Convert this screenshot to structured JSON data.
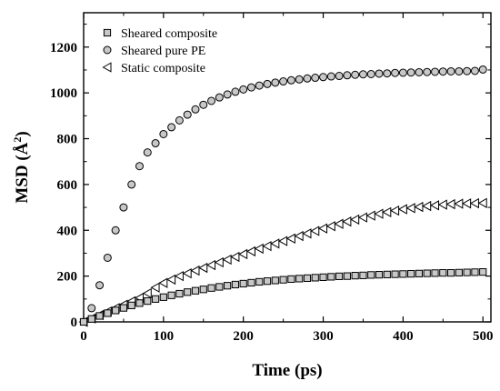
{
  "chart_data": {
    "type": "scatter",
    "title": "",
    "xlabel": "Time (ps)",
    "ylabel": "MSD (Å",
    "ylabel_sup": "2",
    "ylabel_suffix": ")",
    "xlim": [
      0,
      510
    ],
    "ylim": [
      0,
      1350
    ],
    "xticks": [
      0,
      100,
      200,
      300,
      400,
      500
    ],
    "yticks": [
      0,
      200,
      400,
      600,
      800,
      1000,
      1200
    ],
    "x_minor_step": 50,
    "y_minor_step": 100,
    "grid": false,
    "legend_position": "top-left",
    "x": [
      0,
      10,
      20,
      30,
      40,
      50,
      60,
      70,
      80,
      90,
      100,
      110,
      120,
      130,
      140,
      150,
      160,
      170,
      180,
      190,
      200,
      210,
      220,
      230,
      240,
      250,
      260,
      270,
      280,
      290,
      300,
      310,
      320,
      330,
      340,
      350,
      360,
      370,
      380,
      390,
      400,
      410,
      420,
      430,
      440,
      450,
      460,
      470,
      480,
      490,
      500
    ],
    "series": [
      {
        "name": "Sheared composite",
        "marker": "square",
        "values": [
          0,
          13,
          26,
          38,
          50,
          61,
          72,
          82,
          91,
          100,
          108,
          116,
          123,
          130,
          136,
          142,
          148,
          153,
          158,
          163,
          167,
          171,
          175,
          178,
          181,
          184,
          187,
          189,
          191,
          193,
          195,
          197,
          199,
          200,
          202,
          203,
          205,
          206,
          207,
          208,
          209,
          210,
          211,
          212,
          213,
          214,
          214,
          215,
          216,
          217,
          218
        ]
      },
      {
        "name": "Sheared pure PE",
        "marker": "circle",
        "values": [
          null,
          60,
          160,
          280,
          400,
          500,
          600,
          680,
          740,
          780,
          820,
          850,
          880,
          905,
          928,
          948,
          965,
          980,
          993,
          1005,
          1015,
          1024,
          1032,
          1039,
          1045,
          1050,
          1055,
          1059,
          1063,
          1066,
          1069,
          1072,
          1074,
          1077,
          1079,
          1081,
          1082,
          1084,
          1085,
          1087,
          1088,
          1089,
          1090,
          1091,
          1092,
          1093,
          1094,
          1094,
          1095,
          1096,
          1102
        ]
      },
      {
        "name": "Static composite",
        "marker": "triangle-left",
        "values": [
          0,
          15,
          30,
          45,
          60,
          75,
          90,
          105,
          125,
          150,
          170,
          185,
          200,
          212,
          224,
          236,
          248,
          260,
          272,
          284,
          296,
          308,
          320,
          331,
          342,
          353,
          364,
          375,
          386,
          397,
          408,
          418,
          428,
          438,
          447,
          456,
          464,
          472,
          479,
          486,
          492,
          497,
          502,
          506,
          509,
          512,
          514,
          516,
          517,
          518,
          519
        ]
      }
    ]
  }
}
